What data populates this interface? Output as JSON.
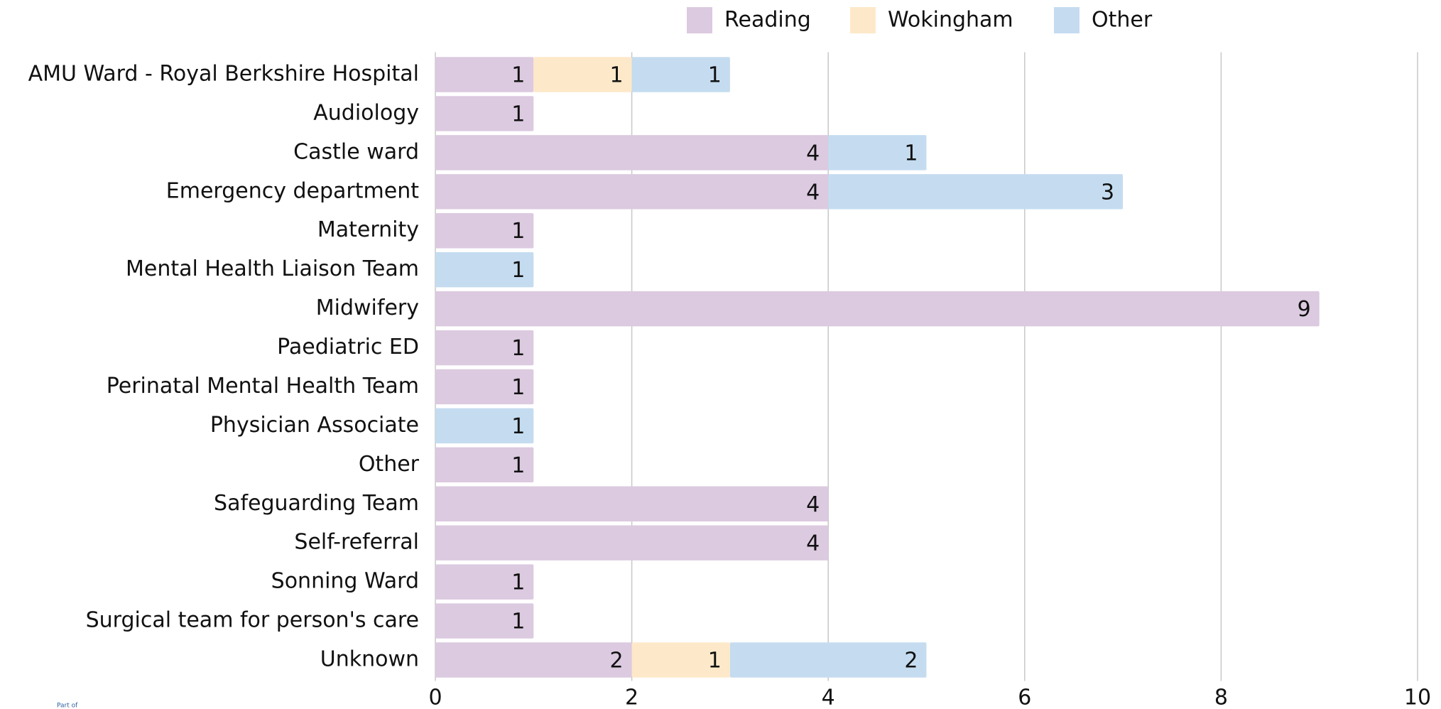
{
  "chart_data": {
    "type": "stacked_bar_horizontal",
    "categories": [
      "AMU Ward - Royal Berkshire Hospital",
      "Audiology",
      "Castle ward",
      "Emergency department",
      "Maternity",
      "Mental Health Liaison Team",
      "Midwifery",
      "Paediatric ED",
      "Perinatal Mental Health Team",
      "Physician Associate",
      "Other",
      "Safeguarding Team",
      "Self-referral",
      "Sonning Ward",
      "Surgical team for person's care",
      "Unknown"
    ],
    "series": [
      {
        "name": "Reading",
        "color": "#dccae0",
        "values": [
          1,
          1,
          4,
          4,
          1,
          null,
          9,
          1,
          1,
          null,
          1,
          4,
          4,
          1,
          1,
          2
        ]
      },
      {
        "name": "Wokingham",
        "color": "#fde9c9",
        "values": [
          1,
          null,
          null,
          null,
          null,
          null,
          null,
          null,
          null,
          null,
          null,
          null,
          null,
          null,
          null,
          1
        ]
      },
      {
        "name": "Other",
        "color": "#c5dcf0",
        "values": [
          1,
          null,
          1,
          3,
          null,
          1,
          null,
          null,
          null,
          1,
          null,
          null,
          null,
          null,
          null,
          2
        ]
      }
    ],
    "xlim": [
      0,
      10
    ],
    "xticks": [
      0,
      2,
      4,
      6,
      8,
      10
    ],
    "grid": true,
    "legend": "top",
    "footer_note": "Part of"
  }
}
